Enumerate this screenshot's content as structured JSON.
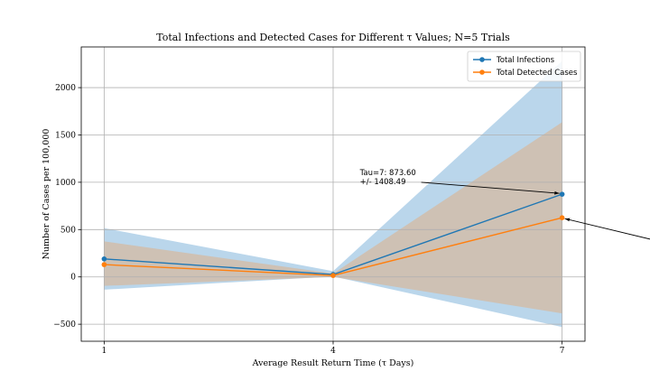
{
  "chart_data": {
    "type": "line",
    "title": "Total Infections and Detected Cases for Different τ Values; N=5 Trials",
    "xlabel": "Average Result Return Time (τ Days)",
    "ylabel": "Number of Cases per 100,000",
    "x": [
      1,
      4,
      7
    ],
    "x_tick_labels": [
      "1",
      "4",
      "7"
    ],
    "xlim": [
      0.7,
      7.3
    ],
    "ylim": [
      -680,
      2430
    ],
    "y_ticks": [
      -500,
      0,
      500,
      1000,
      1500,
      2000
    ],
    "y_tick_labels": [
      "−500",
      "0",
      "500",
      "1000",
      "1500",
      "2000"
    ],
    "grid": true,
    "legend_position": "top-right",
    "series": [
      {
        "name": "Total Infections",
        "color": "#1f77b4",
        "band_color": "#a9cce6",
        "values": [
          190,
          25,
          873.6
        ],
        "lower": [
          -135,
          5,
          -530
        ],
        "upper": [
          515,
          60,
          2282
        ]
      },
      {
        "name": "Total Detected Cases",
        "color": "#ff7f0e",
        "band_color": "#d4b9a2",
        "values": [
          130,
          15,
          625
        ],
        "lower": [
          -95,
          0,
          -385
        ],
        "upper": [
          375,
          35,
          1635
        ]
      }
    ],
    "annotations": [
      {
        "text": "Tau=7: 873.60",
        "text2": "+/- 1408.49",
        "point": [
          7,
          873.6
        ],
        "text_at": [
          4.35,
          1000
        ]
      },
      {
        "text": "",
        "point": [
          7,
          625
        ],
        "text_at": [
          8.2,
          390
        ]
      }
    ]
  }
}
